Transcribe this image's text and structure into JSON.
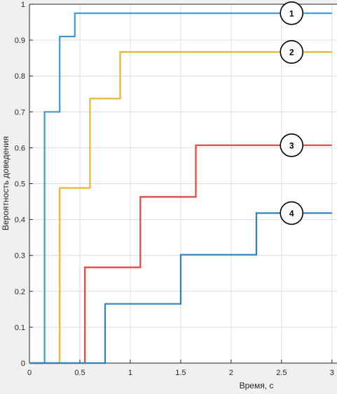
{
  "chart_data": {
    "type": "line",
    "step": true,
    "xlabel": "Время, с",
    "ylabel": "Вероятность доведения",
    "xlim": [
      0,
      3
    ],
    "ylim": [
      0,
      1
    ],
    "x_ticks": [
      0,
      0.5,
      1,
      1.5,
      2,
      2.5,
      3
    ],
    "x_tick_labels": [
      "0",
      "0.5",
      "1",
      "1.5",
      "2",
      "2.5",
      "3"
    ],
    "y_ticks": [
      0,
      0.1,
      0.2,
      0.3,
      0.4,
      0.5,
      0.6,
      0.7,
      0.8,
      0.9,
      1
    ],
    "y_tick_labels": [
      "0",
      "0.1",
      "0.2",
      "0.3",
      "0.4",
      "0.5",
      "0.6",
      "0.7",
      "0.8",
      "0.9",
      "1"
    ],
    "grid": true,
    "series": [
      {
        "label": "1",
        "color": "#3a9ad9",
        "x": [
          0,
          0.15,
          0.15,
          0.3,
          0.3,
          0.45,
          0.45,
          3
        ],
        "y": [
          0,
          0,
          0.7,
          0.7,
          0.91,
          0.91,
          0.975,
          0.975
        ]
      },
      {
        "label": "2",
        "color": "#eab43a",
        "x": [
          0,
          0.3,
          0.3,
          0.6,
          0.6,
          0.9,
          0.9,
          3
        ],
        "y": [
          0,
          0,
          0.488,
          0.488,
          0.737,
          0.737,
          0.867,
          0.867
        ]
      },
      {
        "label": "3",
        "color": "#e8423c",
        "x": [
          0,
          0.55,
          0.55,
          1.1,
          1.1,
          1.65,
          1.65,
          3
        ],
        "y": [
          0,
          0,
          0.267,
          0.267,
          0.463,
          0.463,
          0.607,
          0.607
        ]
      },
      {
        "label": "4",
        "color": "#2f82c0",
        "x": [
          0,
          0.75,
          0.75,
          1.5,
          1.5,
          2.25,
          2.25,
          3
        ],
        "y": [
          0,
          0,
          0.165,
          0.165,
          0.302,
          0.302,
          0.418,
          0.418
        ]
      }
    ]
  }
}
